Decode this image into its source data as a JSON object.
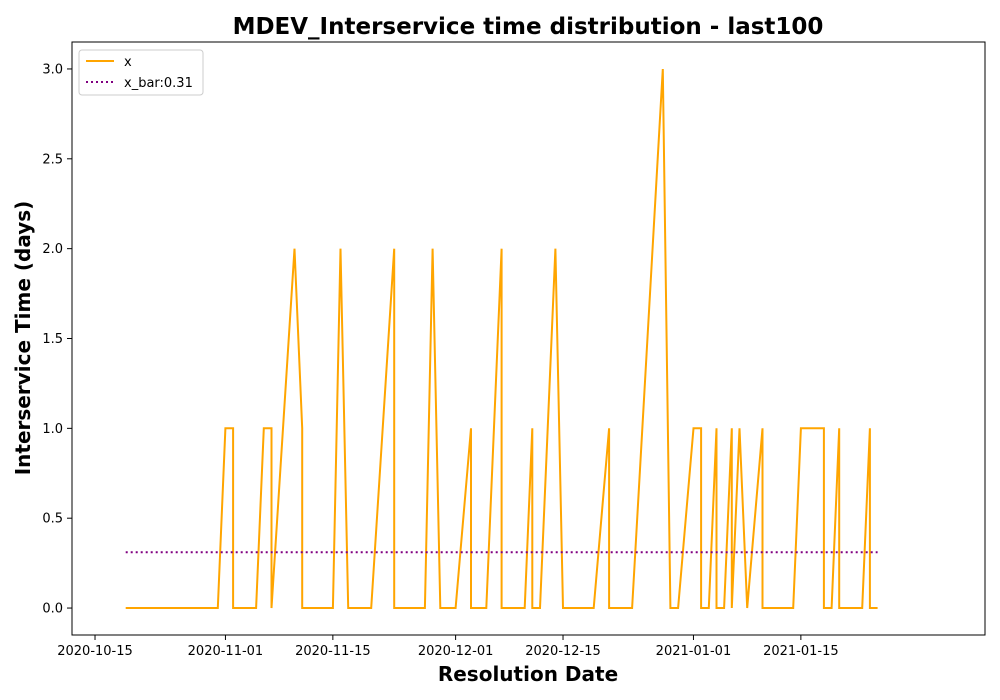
{
  "chart_data": {
    "type": "line",
    "title": "MDEV_Interservice time distribution - last100",
    "xlabel": "Resolution Date",
    "ylabel": "Interservice Time (days)",
    "xlim": [
      "2020-10-12",
      "2021-02-08"
    ],
    "ylim": [
      -0.15,
      3.15
    ],
    "x_ticks": [
      "2020-10-15",
      "2020-11-01",
      "2020-11-15",
      "2020-12-01",
      "2020-12-15",
      "2021-01-01",
      "2021-01-15"
    ],
    "y_ticks": [
      "0.0",
      "0.5",
      "1.0",
      "1.5",
      "2.0",
      "2.5",
      "3.0"
    ],
    "grid": false,
    "legend": {
      "position": "upper left",
      "entries": [
        "x",
        "x_bar:0.31"
      ]
    },
    "series": [
      {
        "name": "x",
        "color": "#ffa500",
        "style": "solid",
        "x": [
          "2020-10-19",
          "2020-10-31",
          "2020-11-01",
          "2020-11-02",
          "2020-11-02",
          "2020-11-05",
          "2020-11-06",
          "2020-11-07",
          "2020-11-07",
          "2020-11-10",
          "2020-11-11",
          "2020-11-11",
          "2020-11-15",
          "2020-11-16",
          "2020-11-17",
          "2020-11-20",
          "2020-11-23",
          "2020-11-23",
          "2020-11-27",
          "2020-11-28",
          "2020-11-29",
          "2020-11-30",
          "2020-12-01",
          "2020-12-03",
          "2020-12-03",
          "2020-12-05",
          "2020-12-07",
          "2020-12-07",
          "2020-12-10",
          "2020-12-11",
          "2020-12-11",
          "2020-12-12",
          "2020-12-14",
          "2020-12-15",
          "2020-12-19",
          "2020-12-21",
          "2020-12-21",
          "2020-12-24",
          "2020-12-28",
          "2020-12-29",
          "2020-12-30",
          "2021-01-01",
          "2021-01-02",
          "2021-01-02",
          "2021-01-03",
          "2021-01-04",
          "2021-01-04",
          "2021-01-05",
          "2021-01-06",
          "2021-01-06",
          "2021-01-07",
          "2021-01-08",
          "2021-01-08",
          "2021-01-10",
          "2021-01-10",
          "2021-01-14",
          "2021-01-15",
          "2021-01-18",
          "2021-01-18",
          "2021-01-19",
          "2021-01-20",
          "2021-01-20",
          "2021-01-23",
          "2021-01-24",
          "2021-01-24",
          "2021-01-25"
        ],
        "y": [
          0,
          0,
          1,
          1,
          0,
          0,
          1,
          1,
          0,
          2,
          1,
          0,
          0,
          2,
          0,
          0,
          2,
          0,
          0,
          2,
          0,
          0,
          0,
          1,
          0,
          0,
          2,
          0,
          0,
          1,
          0,
          0,
          2,
          0,
          0,
          1,
          0,
          0,
          3,
          0,
          0,
          1,
          1,
          0,
          0,
          1,
          0,
          0,
          1,
          0,
          1,
          0,
          0,
          1,
          0,
          0,
          1,
          1,
          0,
          0,
          1,
          0,
          0,
          1,
          0,
          0
        ]
      },
      {
        "name": "x_bar:0.31",
        "color": "#800080",
        "style": "dotted",
        "x": [
          "2020-10-19",
          "2021-01-25"
        ],
        "y": [
          0.31,
          0.31
        ]
      }
    ]
  }
}
